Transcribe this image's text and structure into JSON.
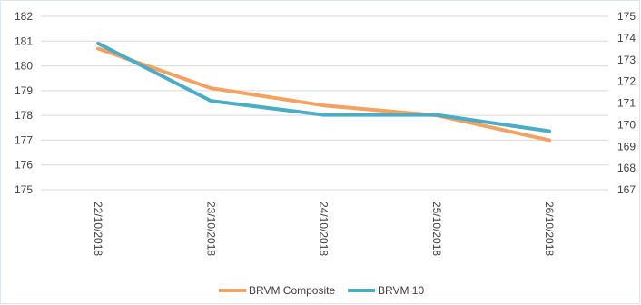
{
  "chart_data": {
    "type": "line",
    "categories": [
      "22/10/2018",
      "23/10/2018",
      "24/10/2018",
      "25/10/2018",
      "26/10/2018"
    ],
    "series": [
      {
        "name": "BRVM Composite",
        "axis": "left",
        "color": "#F4A261",
        "values": [
          180.7,
          179.1,
          178.4,
          178.0,
          177.0
        ]
      },
      {
        "name": "BRVM 10",
        "axis": "right",
        "color": "#4BACC6",
        "values": [
          173.75,
          171.1,
          170.45,
          170.45,
          169.7
        ]
      }
    ],
    "y_left": {
      "min": 175,
      "max": 182,
      "ticks": [
        "175",
        "176",
        "177",
        "178",
        "179",
        "180",
        "181",
        "182"
      ]
    },
    "y_right": {
      "min": 167,
      "max": 175,
      "ticks": [
        "167",
        "168",
        "169",
        "170",
        "171",
        "172",
        "173",
        "174",
        "175"
      ]
    },
    "grid": true,
    "legend_position": "bottom"
  }
}
